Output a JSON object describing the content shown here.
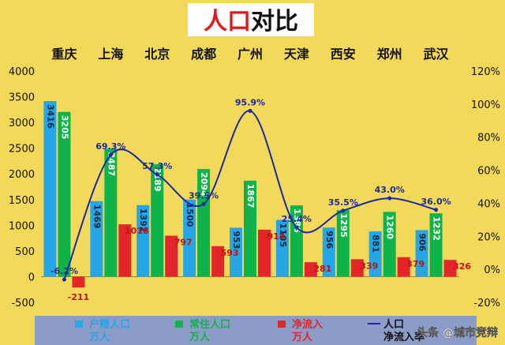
{
  "colors": {
    "background": "#f3d95a",
    "title_box": "#ffffff",
    "title_red": "#e01b1b",
    "title_black": "#111111",
    "huji": "#26a6e6",
    "changzhu": "#10b34a",
    "jingliu": "#e3262a",
    "rate_line": "#1a28a8",
    "legend_bg": "#8c9cc8"
  },
  "chart_data": {
    "type": "bar",
    "title_part1": "人口",
    "title_part2": "对比",
    "categories": [
      "重庆",
      "上海",
      "北京",
      "成都",
      "广州",
      "天津",
      "西安",
      "郑州",
      "武汉"
    ],
    "ylim": [
      -500,
      4000
    ],
    "yticks": [
      "4000",
      "3500",
      "3000",
      "2500",
      "2000",
      "1500",
      "1000",
      "500",
      "0",
      "-500"
    ],
    "y2lim": [
      -20,
      120
    ],
    "y2ticks": [
      "120%",
      "100%",
      "80%",
      "60%",
      "40%",
      "20%",
      "0%",
      "-20%"
    ],
    "series": [
      {
        "name": "户籍人口万人",
        "legend_line1": "户籍人口",
        "legend_line2": "万人",
        "values": [
          3416,
          1469,
          1392,
          1500,
          953,
          1105,
          956,
          881,
          906
        ],
        "labels": [
          "3416",
          "1469",
          "1392",
          "1500",
          "953",
          "1105",
          "956",
          "881",
          "906"
        ]
      },
      {
        "name": "常住人口万人",
        "legend_line1": "常住人口",
        "legend_line2": "万人",
        "values": [
          3205,
          2487,
          2189,
          2094,
          1867,
          1386,
          1295,
          1260,
          1232
        ],
        "labels": [
          "3205",
          "2487",
          "2189",
          "2094",
          "1867",
          "1386",
          "1295",
          "1260",
          "1232"
        ]
      },
      {
        "name": "净流入万人",
        "legend_line1": "净流入",
        "legend_line2": "万人",
        "values": [
          -211,
          1018,
          797,
          593,
          914,
          281,
          339,
          379,
          326
        ],
        "labels": [
          "-211",
          "1018",
          "797",
          "593",
          "914",
          "281",
          "339",
          "379",
          "326"
        ]
      },
      {
        "name": "人口净流入率",
        "legend_line1": "人口",
        "legend_line2": "净流入率",
        "values": [
          -6.2,
          69.3,
          57.3,
          39.5,
          95.9,
          25.4,
          35.5,
          43.0,
          36.0
        ],
        "labels": [
          "-6.2%",
          "69.3%",
          "57.3%",
          "39.5%",
          "95.9%",
          "25.4%",
          "35.5%",
          "43.0%",
          "36.0%"
        ],
        "axis": "right"
      }
    ]
  },
  "watermark": "头条 @城市竞辩"
}
